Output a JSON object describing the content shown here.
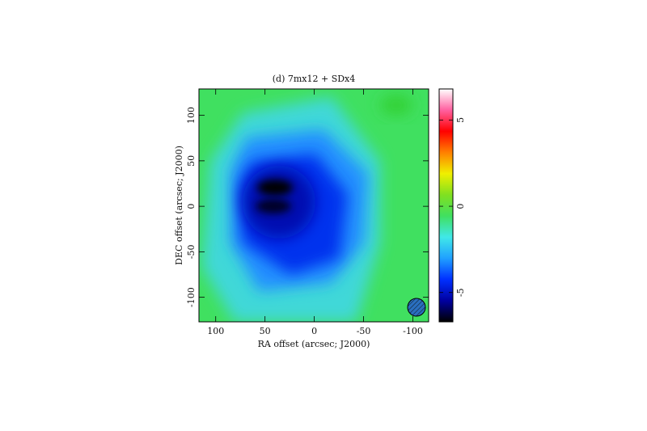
{
  "chart_data": {
    "type": "image",
    "title": "(d) 7mx12 + SDx4",
    "xlabel": "RA offset (arcsec; J2000)",
    "ylabel": "DEC offset (arcsec; J2000)",
    "xlim": [
      117,
      -116
    ],
    "xticks": [
      100,
      50,
      0,
      -50,
      -100
    ],
    "ylim": [
      -127,
      129
    ],
    "yticks": [
      -100,
      -50,
      0,
      50,
      100
    ],
    "colorbar": {
      "lim": [
        -6.7,
        6.8
      ],
      "ticks": [
        -5,
        0,
        5
      ],
      "colors": [
        "#000000",
        "#0000a0",
        "#0030ff",
        "#20a0ff",
        "#40e8e8",
        "#40e060",
        "#80e020",
        "#f0f000",
        "#ff8000",
        "#ff0000",
        "#ff60a0",
        "#ffffff"
      ]
    }
  }
}
